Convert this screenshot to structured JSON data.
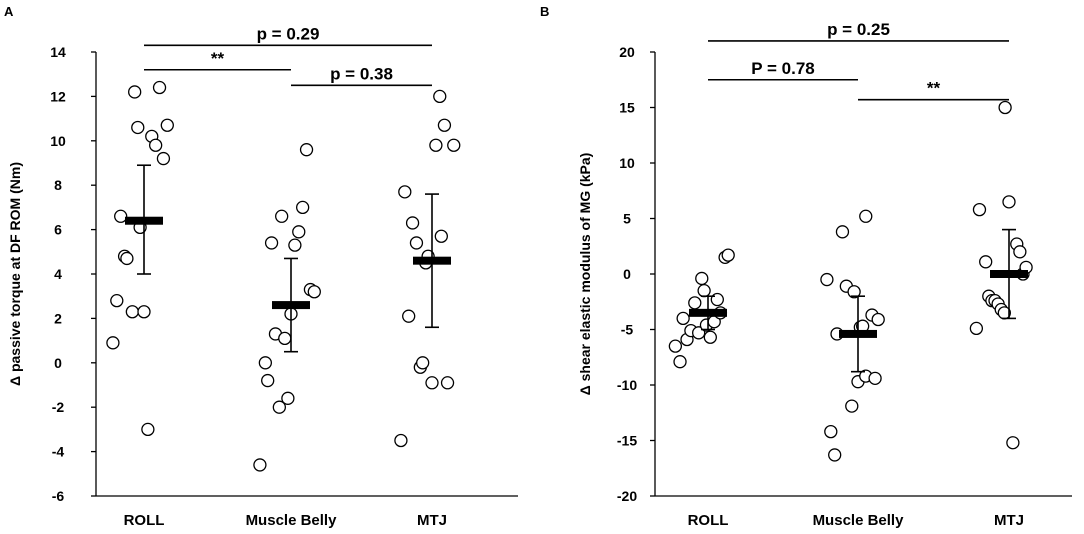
{
  "chart_data": [
    {
      "type": "scatter",
      "panel": "A",
      "ylabel": "Δ passive  torque at DF ROM (Nm)",
      "ylim": [
        -6,
        14
      ],
      "yticks": [
        -6,
        -4,
        -2,
        0,
        2,
        4,
        6,
        8,
        10,
        12,
        14
      ],
      "categories": [
        "ROLL",
        "Muscle Belly",
        "MTJ"
      ],
      "points": [
        [
          [
            -0.4,
            0.9
          ],
          [
            -0.35,
            2.8
          ],
          [
            -0.3,
            6.6
          ],
          [
            -0.25,
            4.8
          ],
          [
            -0.22,
            4.7
          ],
          [
            -0.15,
            2.3
          ],
          [
            -0.12,
            12.2
          ],
          [
            -0.08,
            10.6
          ],
          [
            -0.05,
            6.1
          ],
          [
            0.0,
            2.3
          ],
          [
            0.05,
            -3.0
          ],
          [
            0.1,
            10.2
          ],
          [
            0.15,
            9.8
          ],
          [
            0.2,
            12.4
          ],
          [
            0.25,
            9.2
          ],
          [
            0.3,
            10.7
          ]
        ],
        [
          [
            -0.4,
            -4.6
          ],
          [
            -0.33,
            0.0
          ],
          [
            -0.3,
            -0.8
          ],
          [
            -0.25,
            5.4
          ],
          [
            -0.2,
            1.3
          ],
          [
            -0.15,
            -2.0
          ],
          [
            -0.12,
            6.6
          ],
          [
            -0.08,
            1.1
          ],
          [
            -0.04,
            -1.6
          ],
          [
            0.0,
            2.2
          ],
          [
            0.05,
            5.3
          ],
          [
            0.1,
            5.9
          ],
          [
            0.15,
            7.0
          ],
          [
            0.2,
            9.6
          ],
          [
            0.25,
            3.3
          ],
          [
            0.3,
            3.2
          ]
        ],
        [
          [
            -0.4,
            -3.5
          ],
          [
            -0.35,
            7.7
          ],
          [
            -0.3,
            2.1
          ],
          [
            -0.25,
            6.3
          ],
          [
            -0.2,
            5.4
          ],
          [
            -0.15,
            -0.2
          ],
          [
            -0.12,
            0.0
          ],
          [
            -0.08,
            4.5
          ],
          [
            -0.05,
            4.8
          ],
          [
            0.0,
            -0.9
          ],
          [
            0.05,
            9.8
          ],
          [
            0.1,
            12.0
          ],
          [
            0.12,
            5.7
          ],
          [
            0.16,
            10.7
          ],
          [
            0.2,
            -0.9
          ],
          [
            0.28,
            9.8
          ]
        ]
      ],
      "means": [
        6.4,
        2.6,
        4.6
      ],
      "err_low": [
        4.0,
        0.5,
        1.6
      ],
      "err_high": [
        8.9,
        4.7,
        7.6
      ],
      "brackets": [
        {
          "from": 0,
          "to": 2,
          "label": "p = 0.29",
          "y": 14.3
        },
        {
          "from": 0,
          "to": 1,
          "label": "**",
          "y": 13.2
        },
        {
          "from": 1,
          "to": 2,
          "label": "p = 0.38",
          "y": 12.5
        }
      ]
    },
    {
      "type": "scatter",
      "panel": "B",
      "ylabel": "Δ shear elastic modulus of MG (kPa)",
      "ylim": [
        -20,
        20
      ],
      "yticks": [
        -20,
        -15,
        -10,
        -5,
        0,
        5,
        10,
        15,
        20
      ],
      "categories": [
        "ROLL",
        "Muscle Belly",
        "MTJ"
      ],
      "points": [
        [
          [
            -0.42,
            -6.5
          ],
          [
            -0.36,
            -7.9
          ],
          [
            -0.32,
            -4.0
          ],
          [
            -0.27,
            -5.9
          ],
          [
            -0.22,
            -5.1
          ],
          [
            -0.17,
            -2.6
          ],
          [
            -0.12,
            -5.3
          ],
          [
            -0.08,
            -0.4
          ],
          [
            -0.05,
            -1.5
          ],
          [
            -0.02,
            -4.6
          ],
          [
            0.03,
            -5.7
          ],
          [
            0.08,
            -4.3
          ],
          [
            0.12,
            -2.3
          ],
          [
            0.16,
            -3.5
          ],
          [
            0.22,
            1.5
          ],
          [
            0.26,
            1.7
          ]
        ],
        [
          [
            -0.4,
            -0.5
          ],
          [
            -0.35,
            -14.2
          ],
          [
            -0.3,
            -16.3
          ],
          [
            -0.27,
            -5.4
          ],
          [
            -0.2,
            3.8
          ],
          [
            -0.15,
            -1.1
          ],
          [
            -0.08,
            -11.9
          ],
          [
            -0.05,
            -1.6
          ],
          [
            0.0,
            -9.7
          ],
          [
            0.03,
            -4.8
          ],
          [
            0.06,
            -4.7
          ],
          [
            0.1,
            -9.2
          ],
          [
            0.1,
            5.2
          ],
          [
            0.18,
            -3.7
          ],
          [
            0.22,
            -9.4
          ],
          [
            0.26,
            -4.1
          ]
        ],
        [
          [
            -0.42,
            -4.9
          ],
          [
            -0.38,
            5.8
          ],
          [
            -0.3,
            1.1
          ],
          [
            -0.26,
            -2.0
          ],
          [
            -0.22,
            -2.4
          ],
          [
            -0.18,
            -2.4
          ],
          [
            -0.14,
            -2.7
          ],
          [
            -0.1,
            -3.2
          ],
          [
            -0.06,
            -3.5
          ],
          [
            -0.05,
            15.0
          ],
          [
            0.0,
            6.5
          ],
          [
            0.05,
            -15.2
          ],
          [
            0.1,
            2.7
          ],
          [
            0.14,
            2.0
          ],
          [
            0.18,
            0.0
          ],
          [
            0.22,
            0.6
          ]
        ]
      ],
      "means": [
        -3.5,
        -5.4,
        0.0
      ],
      "err_low": [
        -5.0,
        -8.8,
        -4.0
      ],
      "err_high": [
        -2.0,
        -2.0,
        4.0
      ],
      "brackets": [
        {
          "from": 0,
          "to": 2,
          "label": "p = 0.25",
          "y": 21.0
        },
        {
          "from": 0,
          "to": 1,
          "label": "P = 0.78",
          "y": 17.5
        },
        {
          "from": 1,
          "to": 2,
          "label": "**",
          "y": 15.7
        }
      ]
    }
  ]
}
